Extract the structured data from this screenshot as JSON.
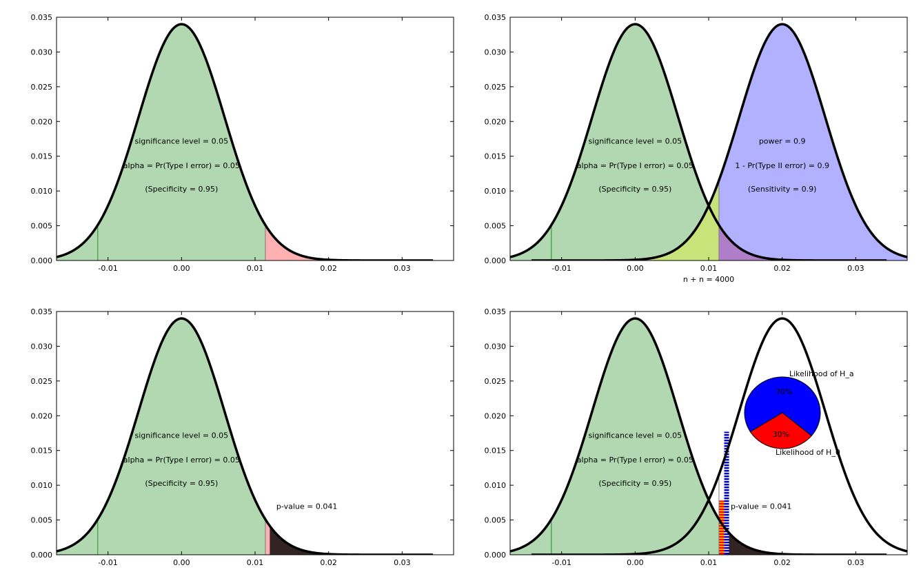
{
  "chart_data": [
    {
      "type": "area",
      "xlim": [
        -0.017,
        0.037
      ],
      "ylim": [
        0,
        0.035
      ],
      "xticks": [
        "-0.01",
        "0.00",
        "0.01",
        "0.02",
        "0.03"
      ],
      "yticks": [
        "0.000",
        "0.005",
        "0.010",
        "0.015",
        "0.020",
        "0.025",
        "0.030",
        "0.035"
      ],
      "xlabel": "",
      "null_distribution": {
        "mean": 0.0,
        "sd": 0.00585,
        "peak": 0.034
      },
      "critical_value": 0.0114,
      "lower_marker": -0.0114,
      "annotations": [
        "significance level = 0.05",
        "alpha = Pr(Type I error) = 0.05",
        "(Specificity = 0.95)"
      ],
      "colors": {
        "null_fill": "#b1d8b1",
        "alpha_fill": "#ffb1b1"
      }
    },
    {
      "type": "area",
      "xlim": [
        -0.017,
        0.037
      ],
      "ylim": [
        0,
        0.035
      ],
      "xticks": [
        "-0.01",
        "0.00",
        "0.01",
        "0.02",
        "0.03"
      ],
      "yticks": [
        "0.000",
        "0.005",
        "0.010",
        "0.015",
        "0.020",
        "0.025",
        "0.030",
        "0.035"
      ],
      "xlabel": "n + n = 4000",
      "null_distribution": {
        "mean": 0.0,
        "sd": 0.00585,
        "peak": 0.034
      },
      "alternative_distribution": {
        "mean": 0.02,
        "sd": 0.00585,
        "peak": 0.034
      },
      "critical_value": 0.0114,
      "lower_marker": -0.0114,
      "annotations": [
        "significance level = 0.05",
        "alpha = Pr(Type I error) = 0.05",
        "(Specificity = 0.95)"
      ],
      "annotations_alt": [
        "power = 0.9",
        "1 - Pr(Type II error) = 0.9",
        "(Sensitivity = 0.9)"
      ],
      "colors": {
        "null_fill": "#b1d8b1",
        "alt_fill": "#b1b1ff",
        "beta_fill": "#c8e37a",
        "overlap_fill": "#b07ec8",
        "yellow_fill": "#ffffb1"
      }
    },
    {
      "type": "area",
      "xlim": [
        -0.017,
        0.037
      ],
      "ylim": [
        0,
        0.035
      ],
      "xticks": [
        "-0.01",
        "0.00",
        "0.01",
        "0.02",
        "0.03"
      ],
      "yticks": [
        "0.000",
        "0.005",
        "0.010",
        "0.015",
        "0.020",
        "0.025",
        "0.030",
        "0.035"
      ],
      "xlabel": "",
      "null_distribution": {
        "mean": 0.0,
        "sd": 0.00585,
        "peak": 0.034
      },
      "critical_value": 0.0114,
      "lower_marker": -0.0114,
      "observed_value": 0.012,
      "annotations": [
        "significance level = 0.05",
        "alpha = Pr(Type I error) = 0.05",
        "(Specificity = 0.95)"
      ],
      "pvalue_label": "p-value = 0.041",
      "colors": {
        "null_fill": "#b1d8b1",
        "alpha_fill": "#ffb1b1",
        "pvalue_fill": "#332323"
      }
    },
    {
      "type": "area",
      "xlim": [
        -0.017,
        0.037
      ],
      "ylim": [
        0,
        0.035
      ],
      "xticks": [
        "-0.01",
        "0.00",
        "0.01",
        "0.02",
        "0.03"
      ],
      "yticks": [
        "0.000",
        "0.005",
        "0.010",
        "0.015",
        "0.020",
        "0.025",
        "0.030",
        "0.035"
      ],
      "xlabel": "",
      "null_distribution": {
        "mean": 0.0,
        "sd": 0.00585,
        "peak": 0.034
      },
      "alternative_distribution": {
        "mean": 0.02,
        "sd": 0.00585,
        "peak": 0.034
      },
      "critical_value": 0.0114,
      "lower_marker": -0.0114,
      "observed_value": 0.0123,
      "annotations": [
        "significance level = 0.05",
        "alpha = Pr(Type I error) = 0.05",
        "(Specificity = 0.95)"
      ],
      "pvalue_label": "p-value = 0.041",
      "likelihood_bars": {
        "h0_height": 0.0078,
        "ha_height": 0.0177
      },
      "pie": {
        "slices": [
          {
            "label": "Likelihood of H_a",
            "value": 70,
            "pct": "70%",
            "color": "#0000ff"
          },
          {
            "label": "Likelihood of H_0",
            "value": 30,
            "pct": "30%",
            "color": "#ff0000"
          }
        ]
      },
      "colors": {
        "null_fill": "#b1d8b1",
        "pvalue_fill": "#332323",
        "h0_bar": "#ff0000",
        "h0_bar_hatch": "#ffd700",
        "ha_bar": "#0000cc"
      }
    }
  ]
}
